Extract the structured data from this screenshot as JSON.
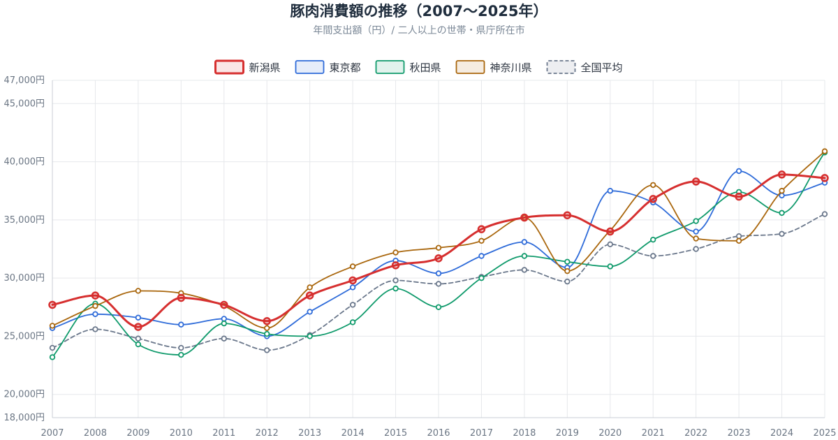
{
  "chart_data": {
    "type": "line",
    "title": "豚肉消費額の推移（2007〜2025年）",
    "subtitle": "年間支出額（円）/ 二人以上の世帯・県庁所在市",
    "x": [
      "2007",
      "2008",
      "2009",
      "2010",
      "2011",
      "2012",
      "2013",
      "2014",
      "2015",
      "2016",
      "2017",
      "2018",
      "2019",
      "2020",
      "2021",
      "2022",
      "2023",
      "2024",
      "2025"
    ],
    "ylim": [
      18000,
      47000
    ],
    "yticks": [
      18000,
      20000,
      25000,
      30000,
      35000,
      40000,
      45000,
      47000
    ],
    "ytick_labels": [
      "18,000円",
      "20,000円",
      "25,000円",
      "30,000円",
      "35,000円",
      "40,000円",
      "45,000円",
      "47,000円"
    ],
    "grid": true,
    "legend_position": "top-center",
    "series": [
      {
        "name": "新潟県",
        "color": "#d62f2f",
        "emphasis": true,
        "dashed": false,
        "values": [
          27700,
          28500,
          25800,
          28300,
          27700,
          26300,
          28500,
          29800,
          31100,
          31700,
          34200,
          35200,
          35400,
          34000,
          36800,
          38300,
          37000,
          38900,
          38600
        ]
      },
      {
        "name": "東京都",
        "color": "#2e6bd9",
        "emphasis": false,
        "dashed": false,
        "values": [
          25700,
          26900,
          26600,
          26000,
          26500,
          25000,
          27100,
          29200,
          31500,
          30400,
          31900,
          33100,
          30900,
          37500,
          36500,
          34000,
          39200,
          37100,
          38200
        ]
      },
      {
        "name": "秋田県",
        "color": "#0f9a6b",
        "emphasis": false,
        "dashed": false,
        "values": [
          23200,
          27800,
          24300,
          23400,
          26100,
          25200,
          25000,
          26200,
          29100,
          27500,
          30000,
          31900,
          31400,
          31000,
          33300,
          34900,
          37400,
          35600,
          40800
        ]
      },
      {
        "name": "神奈川県",
        "color": "#a9660c",
        "emphasis": false,
        "dashed": false,
        "values": [
          25900,
          27600,
          28900,
          28700,
          27600,
          25700,
          29200,
          31000,
          32200,
          32600,
          33200,
          35200,
          30600,
          34100,
          38000,
          33400,
          33200,
          37500,
          40900
        ]
      },
      {
        "name": "全国平均",
        "color": "#6a778b",
        "emphasis": false,
        "dashed": true,
        "values": [
          24000,
          25600,
          24800,
          24000,
          24800,
          23800,
          25100,
          27700,
          29800,
          29500,
          30100,
          30700,
          29700,
          32900,
          31900,
          32500,
          33600,
          33800,
          35500
        ]
      }
    ]
  }
}
